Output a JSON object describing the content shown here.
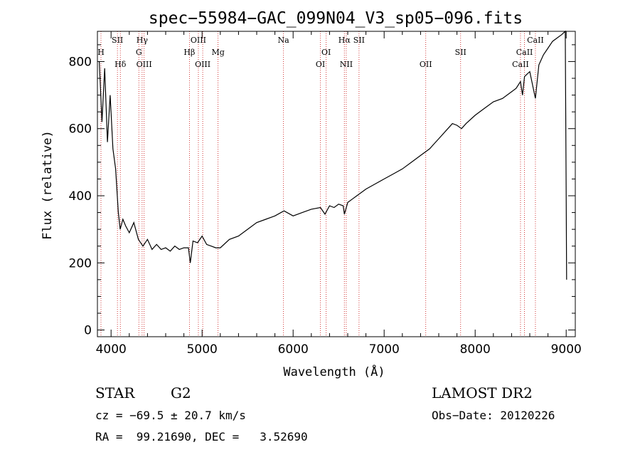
{
  "chart_data": {
    "type": "line",
    "title": "spec−55984−GAC_099N04_V3_sp05−096.fits",
    "xlabel": "Wavelength (Å)",
    "ylabel": "Flux (relative)",
    "xlim": [
      3850,
      9100
    ],
    "ylim": [
      -20,
      890
    ],
    "xticks": [
      4000,
      5000,
      6000,
      7000,
      8000,
      9000
    ],
    "yticks": [
      0,
      200,
      400,
      600,
      800
    ],
    "grid": false,
    "line_color": "#000000",
    "marker_color": "#cc2222",
    "series": [
      {
        "x": [
          3870,
          3900,
          3930,
          3960,
          3990,
          4020,
          4050,
          4080,
          4100,
          4130,
          4160,
          4200,
          4250,
          4300,
          4350,
          4400,
          4450,
          4500,
          4550,
          4600,
          4650,
          4700,
          4750,
          4800,
          4850,
          4870,
          4900,
          4950,
          5000,
          5050,
          5100,
          5150,
          5200,
          5300,
          5400,
          5500,
          5600,
          5700,
          5800,
          5900,
          6000,
          6100,
          6200,
          6300,
          6350,
          6400,
          6450,
          6500,
          6550,
          6563,
          6600,
          6650,
          6700,
          6800,
          6900,
          7000,
          7100,
          7200,
          7300,
          7400,
          7500,
          7550,
          7600,
          7700,
          7750,
          7800,
          7850,
          7900,
          8000,
          8100,
          8200,
          8300,
          8400,
          8450,
          8498,
          8520,
          8542,
          8560,
          8600,
          8662,
          8700,
          8750,
          8800,
          8850,
          8900,
          8950,
          8990,
          9000,
          9005
        ],
        "y": [
          800,
          620,
          780,
          560,
          700,
          540,
          480,
          350,
          300,
          330,
          310,
          290,
          320,
          270,
          250,
          270,
          240,
          255,
          240,
          245,
          235,
          250,
          240,
          245,
          245,
          200,
          265,
          260,
          280,
          255,
          250,
          245,
          245,
          270,
          280,
          300,
          320,
          330,
          340,
          355,
          340,
          350,
          360,
          365,
          345,
          370,
          365,
          375,
          370,
          345,
          380,
          390,
          400,
          420,
          435,
          450,
          465,
          480,
          500,
          520,
          540,
          555,
          570,
          600,
          615,
          610,
          600,
          615,
          640,
          660,
          680,
          690,
          710,
          720,
          740,
          700,
          755,
          760,
          770,
          690,
          790,
          820,
          840,
          860,
          870,
          880,
          890,
          400,
          150
        ]
      }
    ],
    "line_markers": [
      {
        "label": "H",
        "x": 3889,
        "row": 2
      },
      {
        "label": "SII",
        "x": 4070,
        "row": 1
      },
      {
        "label": "Hδ",
        "x": 4102,
        "row": 3
      },
      {
        "label": "Hγ",
        "x": 4341,
        "row": 1
      },
      {
        "label": "G",
        "x": 4305,
        "row": 2
      },
      {
        "label": "OIII",
        "x": 4363,
        "row": 3
      },
      {
        "label": "OIII",
        "x": 4959,
        "row": 1
      },
      {
        "label": "Hβ",
        "x": 4861,
        "row": 2
      },
      {
        "label": "OIII",
        "x": 5007,
        "row": 3
      },
      {
        "label": "Mg",
        "x": 5175,
        "row": 2
      },
      {
        "label": "Na",
        "x": 5894,
        "row": 1
      },
      {
        "label": "OI",
        "x": 6363,
        "row": 2
      },
      {
        "label": "OI",
        "x": 6300,
        "row": 3
      },
      {
        "label": "Hα",
        "x": 6563,
        "row": 1
      },
      {
        "label": "NII",
        "x": 6584,
        "row": 3
      },
      {
        "label": "SII",
        "x": 6724,
        "row": 1
      },
      {
        "label": "OII",
        "x": 7457,
        "row": 3
      },
      {
        "label": "SII",
        "x": 7840,
        "row": 2
      },
      {
        "label": "CaII",
        "x": 8662,
        "row": 1
      },
      {
        "label": "CaII",
        "x": 8542,
        "row": 2
      },
      {
        "label": "CaII",
        "x": 8498,
        "row": 3
      }
    ]
  },
  "info": {
    "object_class": "STAR",
    "subclass": "G2",
    "survey": "LAMOST DR2",
    "redshift_line": "cz = −69.5 ± 20.7 km/s",
    "obs_date_line": "Obs−Date: 20120226",
    "coords_line": "RA =  99.21690, DEC =   3.52690"
  }
}
